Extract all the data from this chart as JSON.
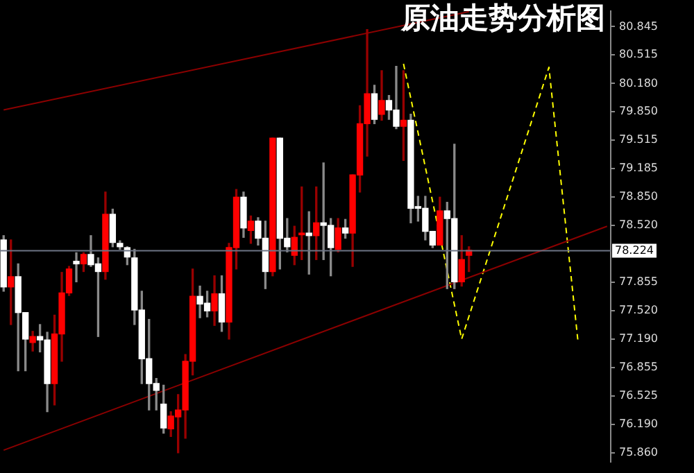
{
  "chart_data": {
    "type": "candlestick",
    "title": "原油走势分析图",
    "categories": [
      null,
      null,
      null,
      null,
      null,
      null,
      null,
      null,
      null,
      null,
      null,
      null,
      null,
      null,
      null,
      null,
      null,
      null,
      null,
      null,
      null,
      null,
      null,
      null,
      null,
      null,
      null,
      null,
      null,
      null,
      null,
      null,
      null,
      null,
      null,
      null,
      null,
      null,
      null,
      null,
      null,
      null,
      null,
      null,
      null,
      null,
      null,
      null,
      null,
      null,
      null,
      null,
      null,
      null,
      null,
      null,
      null,
      null,
      null,
      null,
      null,
      null,
      null,
      null,
      null,
      null,
      null,
      null,
      null,
      null,
      null,
      null,
      null,
      null,
      null,
      null,
      null,
      null,
      null,
      null,
      null,
      null,
      null,
      null
    ],
    "ohlc": [
      [
        78.35,
        78.4,
        77.75,
        77.8
      ],
      [
        77.8,
        78.35,
        77.36,
        77.92
      ],
      [
        77.92,
        78.07,
        76.82,
        77.5
      ],
      [
        77.5,
        77.5,
        76.82,
        77.19
      ],
      [
        77.15,
        77.28,
        77.05,
        77.22
      ],
      [
        77.22,
        77.36,
        77.04,
        77.18
      ],
      [
        77.18,
        77.27,
        76.34,
        76.67
      ],
      [
        76.67,
        77.47,
        76.42,
        77.25
      ],
      [
        77.25,
        77.97,
        76.93,
        77.73
      ],
      [
        77.73,
        78.04,
        77.7,
        78.01
      ],
      [
        78.1,
        78.2,
        77.86,
        78.07
      ],
      [
        78.07,
        78.2,
        77.98,
        78.18
      ],
      [
        78.18,
        78.4,
        78.04,
        78.06
      ],
      [
        78.07,
        78.14,
        77.22,
        77.98
      ],
      [
        77.98,
        78.91,
        77.89,
        78.65
      ],
      [
        78.65,
        78.71,
        78.27,
        78.32
      ],
      [
        78.31,
        78.34,
        78.24,
        78.27
      ],
      [
        78.26,
        78.27,
        78.06,
        78.15
      ],
      [
        78.14,
        78.24,
        77.36,
        77.53
      ],
      [
        77.53,
        77.75,
        76.67,
        76.96
      ],
      [
        76.96,
        77.42,
        76.36,
        76.67
      ],
      [
        76.67,
        76.73,
        76.36,
        76.59
      ],
      [
        76.43,
        76.65,
        76.09,
        76.15
      ],
      [
        76.14,
        76.34,
        76.05,
        76.29
      ],
      [
        76.28,
        76.54,
        75.86,
        76.36
      ],
      [
        76.36,
        77.01,
        76.03,
        76.93
      ],
      [
        76.93,
        78.01,
        76.77,
        77.69
      ],
      [
        77.69,
        77.81,
        77.44,
        77.6
      ],
      [
        77.61,
        77.75,
        77.45,
        77.52
      ],
      [
        77.52,
        77.93,
        77.35,
        77.72
      ],
      [
        77.72,
        77.93,
        77.28,
        77.39
      ],
      [
        77.39,
        78.31,
        77.19,
        78.26
      ],
      [
        78.26,
        78.94,
        78.01,
        78.85
      ],
      [
        78.85,
        78.91,
        78.38,
        78.49
      ],
      [
        78.46,
        78.63,
        78.31,
        78.57
      ],
      [
        78.57,
        78.61,
        78.29,
        78.37
      ],
      [
        78.37,
        78.57,
        77.78,
        77.98
      ],
      [
        77.98,
        79.54,
        77.93,
        79.54
      ],
      [
        79.54,
        79.54,
        78.01,
        78.37
      ],
      [
        78.37,
        78.6,
        78.21,
        78.27
      ],
      [
        78.17,
        78.51,
        78.06,
        78.38
      ],
      [
        78.41,
        78.97,
        78.12,
        78.43
      ],
      [
        78.43,
        78.68,
        77.95,
        78.4
      ],
      [
        78.4,
        78.97,
        78.12,
        78.55
      ],
      [
        78.55,
        79.25,
        78.12,
        78.52
      ],
      [
        78.52,
        78.6,
        77.93,
        78.26
      ],
      [
        78.24,
        78.6,
        78.21,
        78.49
      ],
      [
        78.49,
        78.59,
        78.37,
        78.43
      ],
      [
        78.43,
        79.11,
        78.04,
        79.11
      ],
      [
        79.11,
        79.92,
        78.91,
        79.71
      ],
      [
        79.71,
        80.81,
        79.33,
        80.06
      ],
      [
        80.06,
        80.16,
        79.71,
        79.76
      ],
      [
        79.82,
        80.33,
        79.75,
        79.98
      ],
      [
        79.98,
        80.04,
        79.76,
        79.87
      ],
      [
        79.87,
        80.38,
        79.65,
        79.68
      ],
      [
        79.68,
        80.33,
        79.28,
        79.75
      ],
      [
        79.75,
        79.82,
        78.55,
        78.72
      ],
      [
        78.74,
        78.86,
        78.57,
        78.72
      ],
      [
        78.72,
        78.86,
        78.35,
        78.45
      ],
      [
        78.45,
        78.45,
        78.26,
        78.29
      ],
      [
        78.29,
        78.85,
        78.29,
        78.69
      ],
      [
        78.69,
        78.79,
        77.78,
        78.6
      ],
      [
        78.6,
        79.47,
        77.78,
        77.86
      ],
      [
        77.86,
        78.4,
        77.81,
        78.12
      ],
      [
        78.17,
        78.27,
        77.98,
        78.23
      ],
      null,
      null,
      null,
      null,
      null,
      null,
      null,
      null,
      null,
      null,
      null,
      null,
      null,
      null,
      null,
      null,
      null,
      null,
      null
    ],
    "colors": [
      "#ffffff",
      "#ff0000",
      "#ffffff",
      "#ffffff",
      "#ff0000",
      "#ffffff",
      "#ffffff",
      "#ff0000",
      "#ff0000",
      "#ff0000",
      "#ffffff",
      "#ff0000",
      "#ffffff",
      "#ffffff",
      "#ff0000",
      "#ffffff",
      "#ffffff",
      "#ffffff",
      "#ffffff",
      "#ffffff",
      "#ffffff",
      "#ffffff",
      "#ffffff",
      "#ff0000",
      "#ff0000",
      "#ff0000",
      "#ff0000",
      "#ffffff",
      "#ffffff",
      "#ff0000",
      "#ffffff",
      "#ff0000",
      "#ff0000",
      "#ffffff",
      "#ff0000",
      "#ffffff",
      "#ffffff",
      "#ff0000",
      "#ffffff",
      "#ffffff",
      "#ff0000",
      "#ff0000",
      "#ffffff",
      "#ff0000",
      "#ffffff",
      "#ffffff",
      "#ff0000",
      "#ffffff",
      "#ff0000",
      "#ff0000",
      "#ff0000",
      "#ffffff",
      "#ff0000",
      "#ffffff",
      "#ffffff",
      "#ff0000",
      "#ffffff",
      "#ffffff",
      "#ffffff",
      "#ffffff",
      "#ff0000",
      "#ffffff",
      "#ffffff",
      "#ff0000",
      "#ff0000",
      null,
      null,
      null,
      null,
      null,
      null,
      null,
      null,
      null,
      null,
      null,
      null,
      null,
      null,
      null,
      null,
      null,
      null,
      null
    ],
    "ylim": [
      75.75,
      81.03
    ],
    "yticks": [
      {
        "value": 80.845,
        "label": "80.845"
      },
      {
        "value": 80.515,
        "label": "80.515"
      },
      {
        "value": 80.18,
        "label": "80.180"
      },
      {
        "value": 79.85,
        "label": "79.850"
      },
      {
        "value": 79.515,
        "label": "79.515"
      },
      {
        "value": 79.185,
        "label": "79.185"
      },
      {
        "value": 78.85,
        "label": "78.850"
      },
      {
        "value": 78.52,
        "label": "78.520"
      },
      {
        "value": 77.855,
        "label": "77.855"
      },
      {
        "value": 77.52,
        "label": "77.520"
      },
      {
        "value": 77.19,
        "label": "77.190"
      },
      {
        "value": 76.855,
        "label": "76.855"
      },
      {
        "value": 76.525,
        "label": "76.525"
      },
      {
        "value": 76.19,
        "label": "76.190"
      },
      {
        "value": 75.86,
        "label": "75.860"
      }
    ],
    "tick_labels": "y",
    "grid": false,
    "legend": false,
    "ref_lines": [
      {
        "axis": "y",
        "value": 78.224,
        "label": "78.224",
        "color": "#6d7585"
      }
    ],
    "series": [
      {
        "type": "line",
        "values": [
          79.87,
          null,
          null,
          null,
          null,
          null,
          null,
          null,
          null,
          null,
          null,
          null,
          null,
          null,
          null,
          null,
          null,
          null,
          null,
          null,
          null,
          null,
          null,
          null,
          null,
          null,
          null,
          null,
          null,
          null,
          null,
          null,
          null,
          null,
          null,
          null,
          null,
          null,
          null,
          null,
          null,
          null,
          null,
          null,
          null,
          null,
          null,
          null,
          null,
          null,
          null,
          null,
          null,
          null,
          null,
          null,
          null,
          null,
          null,
          null,
          null,
          null,
          null,
          null,
          81.02,
          null,
          null,
          null,
          null,
          null,
          null,
          null,
          null,
          null,
          null,
          null,
          null,
          null,
          null,
          null,
          null,
          null,
          null,
          null
        ],
        "color": "#8b0000",
        "line_style": "solid"
      },
      {
        "type": "line",
        "values": [
          75.89,
          null,
          null,
          null,
          null,
          null,
          null,
          null,
          null,
          null,
          null,
          null,
          null,
          null,
          null,
          null,
          null,
          null,
          null,
          null,
          null,
          null,
          null,
          null,
          null,
          null,
          null,
          null,
          null,
          null,
          null,
          null,
          null,
          null,
          null,
          null,
          null,
          null,
          null,
          null,
          null,
          null,
          null,
          null,
          null,
          null,
          null,
          null,
          null,
          null,
          null,
          null,
          null,
          null,
          null,
          null,
          null,
          null,
          null,
          null,
          null,
          null,
          null,
          null,
          null,
          null,
          null,
          null,
          null,
          null,
          null,
          null,
          null,
          null,
          null,
          null,
          null,
          null,
          null,
          null,
          null,
          null,
          null,
          78.51
        ],
        "color": "#8b0000",
        "line_style": "solid"
      },
      {
        "type": "line",
        "values": [
          null,
          null,
          null,
          null,
          null,
          null,
          null,
          null,
          null,
          null,
          null,
          null,
          null,
          null,
          null,
          null,
          null,
          null,
          null,
          null,
          null,
          null,
          null,
          null,
          null,
          null,
          null,
          null,
          null,
          null,
          null,
          null,
          null,
          null,
          null,
          null,
          null,
          null,
          null,
          null,
          null,
          null,
          null,
          null,
          null,
          null,
          null,
          null,
          null,
          null,
          null,
          null,
          null,
          null,
          null,
          80.41,
          null,
          null,
          null,
          null,
          null,
          null,
          null,
          77.19,
          null,
          null,
          null,
          null,
          null,
          null,
          null,
          null,
          null,
          null,
          null,
          80.37,
          null,
          null,
          null,
          77.16,
          null,
          null,
          null,
          null
        ],
        "color": "#ffff00",
        "line_style": "dashed"
      }
    ]
  }
}
